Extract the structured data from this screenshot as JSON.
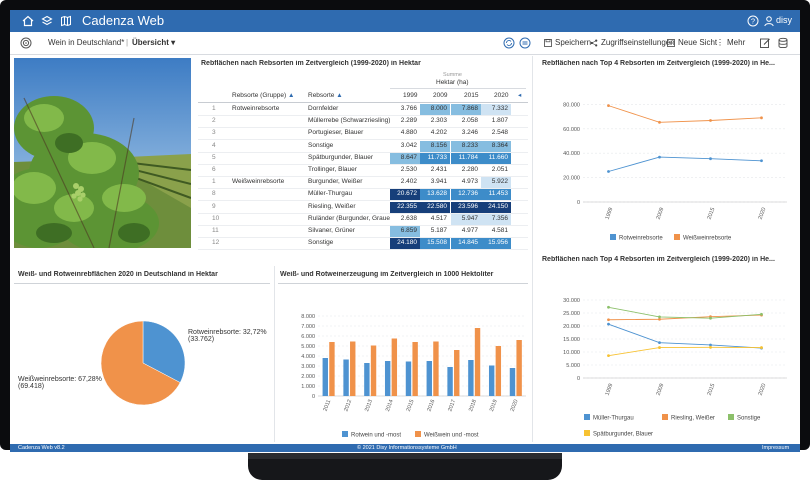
{
  "app": {
    "title": "Cadenza Web",
    "user": "disy"
  },
  "toolbar": {
    "breadcrumb": "Wein in Deutschland*",
    "view": "Übersicht",
    "save": "Speichern",
    "access": "Zugriffseinstellungen",
    "newview": "Neue Sicht",
    "more": "Mehr"
  },
  "table": {
    "title": "Rebflächen nach Rebsorten im Zeitvergleich (1999-2020) in Hektar",
    "summe": "Summe",
    "unit": "Hektar (ha)",
    "col_group": "Rebsorte (Gruppe)",
    "col_sorte": "Rebsorte",
    "years": [
      "1999",
      "2009",
      "2015",
      "2020"
    ],
    "rows": [
      {
        "n": "1",
        "group": "Rotweinrebsorte",
        "sorte": "Dornfelder",
        "v": [
          "3.766",
          "8.000",
          "7.868",
          "7.332"
        ],
        "c": [
          "#ffffff",
          "#86bde0",
          "#86bde0",
          "#cfe3f3"
        ]
      },
      {
        "n": "2",
        "group": "",
        "sorte": "Müllerrebe (Schwarzriesling)",
        "v": [
          "2.289",
          "2.303",
          "2.058",
          "1.807"
        ],
        "c": [
          "#ffffff",
          "#ffffff",
          "#ffffff",
          "#ffffff"
        ]
      },
      {
        "n": "3",
        "group": "",
        "sorte": "Portugieser, Blauer",
        "v": [
          "4.880",
          "4.202",
          "3.246",
          "2.548"
        ],
        "c": [
          "#ffffff",
          "#ffffff",
          "#ffffff",
          "#ffffff"
        ]
      },
      {
        "n": "4",
        "group": "",
        "sorte": "Sonstige",
        "v": [
          "3.042",
          "8.156",
          "8.233",
          "8.364"
        ],
        "c": [
          "#ffffff",
          "#86bde0",
          "#86bde0",
          "#86bde0"
        ]
      },
      {
        "n": "5",
        "group": "",
        "sorte": "Spätburgunder, Blauer",
        "v": [
          "8.647",
          "11.733",
          "11.784",
          "11.660"
        ],
        "c": [
          "#86bde0",
          "#3d8cc9",
          "#3d8cc9",
          "#3d8cc9"
        ]
      },
      {
        "n": "6",
        "group": "",
        "sorte": "Trollinger, Blauer",
        "v": [
          "2.530",
          "2.431",
          "2.280",
          "2.051"
        ],
        "c": [
          "#ffffff",
          "#ffffff",
          "#ffffff",
          "#ffffff"
        ]
      },
      {
        "n": "1",
        "group": "Weißweinrebsorte",
        "sorte": "Burgunder, Weißer",
        "v": [
          "2.402",
          "3.941",
          "4.973",
          "5.922"
        ],
        "c": [
          "#ffffff",
          "#ffffff",
          "#ffffff",
          "#cfe3f3"
        ]
      },
      {
        "n": "8",
        "group": "",
        "sorte": "Müller-Thurgau",
        "v": [
          "20.672",
          "13.628",
          "12.736",
          "11.453"
        ],
        "c": [
          "#173f7a",
          "#3d8cc9",
          "#3d8cc9",
          "#3d8cc9"
        ]
      },
      {
        "n": "9",
        "group": "",
        "sorte": "Riesling, Weißer",
        "v": [
          "22.355",
          "22.580",
          "23.596",
          "24.150"
        ],
        "c": [
          "#173f7a",
          "#173f7a",
          "#173f7a",
          "#173f7a"
        ]
      },
      {
        "n": "10",
        "group": "",
        "sorte": "Ruländer (Burgunder, Grauer)",
        "v": [
          "2.638",
          "4.517",
          "5.947",
          "7.356"
        ],
        "c": [
          "#ffffff",
          "#ffffff",
          "#cfe3f3",
          "#cfe3f3"
        ]
      },
      {
        "n": "11",
        "group": "",
        "sorte": "Silvaner, Grüner",
        "v": [
          "6.859",
          "5.187",
          "4.977",
          "4.581"
        ],
        "c": [
          "#86bde0",
          "#ffffff",
          "#ffffff",
          "#ffffff"
        ]
      },
      {
        "n": "12",
        "group": "",
        "sorte": "Sonstige",
        "v": [
          "24.180",
          "15.508",
          "14.845",
          "15.956"
        ],
        "c": [
          "#173f7a",
          "#3d8cc9",
          "#3d8cc9",
          "#3d8cc9"
        ]
      }
    ]
  },
  "pie": {
    "title": "Weiß- und Rotweinrebflächen 2020 in Deutschland in Hektar",
    "label_rot_1": "Rotweinrebsorte: 32,72%",
    "label_rot_2": "(33.762)",
    "label_weiss_1": "Weißweinrebsorte: 67,28%",
    "label_weiss_2": "(69.418)"
  },
  "bar": {
    "title": "Weiß- und Rotweinerzeugung im Zeitvergleich in 1000 Hektoliter",
    "legend_rot": "Rotwein und -most",
    "legend_weiss": "Weißwein und -most"
  },
  "line1": {
    "title": "Rebflächen nach Top 4 Rebsorten im Zeitvergleich (1999-2020) in He...",
    "legend": [
      "Rotweinrebsorte",
      "Weißweinrebsorte"
    ]
  },
  "line2": {
    "title": "Rebflächen nach Top 4 Rebsorten im Zeitvergleich (1999-2020) in He...",
    "legend": [
      "Müller-Thurgau",
      "Riesling, Weißer",
      "Sonstige",
      "Spätburgunder, Blauer"
    ]
  },
  "footer": {
    "version": "Cadenza Web v8.2",
    "copyright": "© 2021 Disy Informationssysteme GmbH",
    "impressum": "Impressum"
  },
  "colors": {
    "blue": "#4e93d1",
    "orange": "#f0924a",
    "green": "#8cc06a",
    "yellow": "#f7c232",
    "brand": "#2f6bb0"
  },
  "chart_data": [
    {
      "type": "bar",
      "title": "Weiß- und Rotweinerzeugung im Zeitvergleich in 1000 Hektoliter",
      "categories": [
        "2011",
        "2012",
        "2013",
        "2014",
        "2015",
        "2016",
        "2017",
        "2018",
        "2019",
        "2020"
      ],
      "ylim": [
        0,
        8000
      ],
      "yticks": [
        "0",
        "1.000",
        "2.000",
        "3.000",
        "4.000",
        "5.000",
        "6.000",
        "7.000",
        "8.000"
      ],
      "series": [
        {
          "name": "Rotwein und -most",
          "color": "#4e93d1",
          "values": [
            3800,
            3650,
            3300,
            3500,
            3450,
            3500,
            2900,
            3600,
            3050,
            2800
          ]
        },
        {
          "name": "Weißwein und -most",
          "color": "#f0924a",
          "values": [
            5400,
            5450,
            5050,
            5750,
            5400,
            5450,
            4600,
            6800,
            5000,
            5600
          ]
        }
      ]
    },
    {
      "type": "line",
      "title": "Rebflächen nach Top 4 Rebsorten im Zeitvergleich (1999-2020) in He...",
      "x": [
        "1999",
        "2009",
        "2015",
        "2020"
      ],
      "ylim": [
        0,
        100000
      ],
      "yticks": [
        "0",
        "20.000",
        "40.000",
        "60.000",
        "80.000"
      ],
      "series": [
        {
          "name": "Rotweinrebsorte",
          "color": "#4e93d1",
          "values": [
            25000,
            36800,
            35500,
            33800
          ]
        },
        {
          "name": "Weißweinrebsorte",
          "color": "#f0924a",
          "values": [
            79000,
            65300,
            66800,
            69000
          ]
        }
      ]
    },
    {
      "type": "line",
      "title": "Rebflächen nach Top 4 Rebsorten im Zeitvergleich (1999-2020) in He...",
      "x": [
        "1999",
        "2009",
        "2015",
        "2020"
      ],
      "ylim": [
        0,
        30000
      ],
      "yticks": [
        "0",
        "5.000",
        "10.000",
        "15.000",
        "20.000",
        "25.000",
        "30.000"
      ],
      "series": [
        {
          "name": "Müller-Thurgau",
          "color": "#4e93d1",
          "values": [
            20700,
            13600,
            12700,
            11500
          ]
        },
        {
          "name": "Riesling, Weißer",
          "color": "#f0924a",
          "values": [
            22400,
            22600,
            23600,
            24200
          ]
        },
        {
          "name": "Sonstige",
          "color": "#8cc06a",
          "values": [
            27200,
            23500,
            23000,
            24500
          ]
        },
        {
          "name": "Spätburgunder, Blauer",
          "color": "#f7c232",
          "values": [
            8600,
            11700,
            11800,
            11700
          ]
        }
      ]
    },
    {
      "type": "pie",
      "title": "Weiß- und Rotweinrebflächen 2020 in Deutschland in Hektar",
      "categories": [
        "Rotweinrebsorte",
        "Weißweinrebsorte"
      ],
      "values": [
        33762,
        69418
      ],
      "percent": [
        32.72,
        67.28
      ],
      "colors": [
        "#4e93d1",
        "#f0924a"
      ]
    }
  ]
}
